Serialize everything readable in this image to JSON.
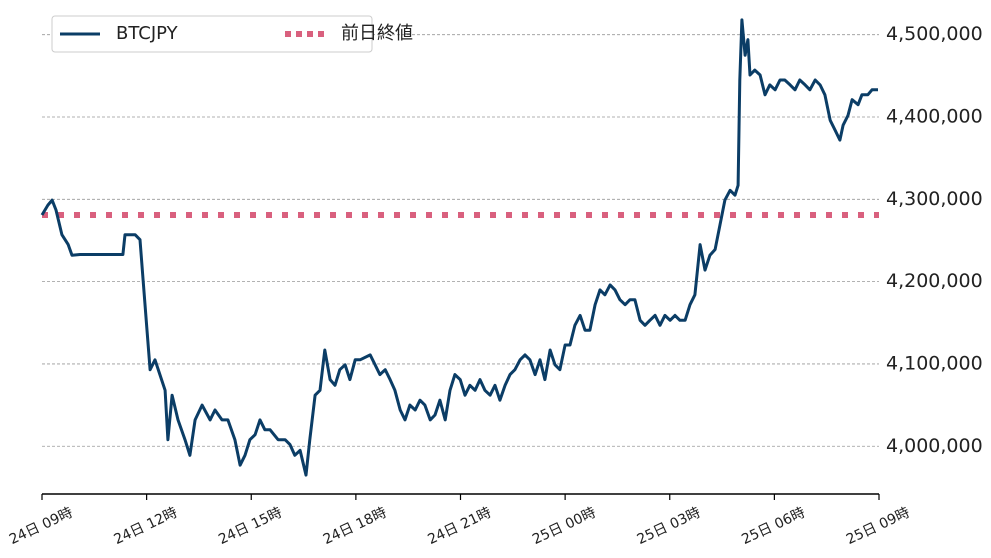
{
  "chart_data": {
    "type": "line",
    "xlim": [
      0,
      24
    ],
    "xticks": [
      {
        "value": 0,
        "label": "24日 09時"
      },
      {
        "value": 3,
        "label": "24日 12時"
      },
      {
        "value": 6,
        "label": "24日 15時"
      },
      {
        "value": 9,
        "label": "24日 18時"
      },
      {
        "value": 12,
        "label": "24日 21時"
      },
      {
        "value": 15,
        "label": "25日 00時"
      },
      {
        "value": 18,
        "label": "25日 03時"
      },
      {
        "value": 21,
        "label": "25日 06時"
      },
      {
        "value": 24,
        "label": "25日 09時"
      }
    ],
    "ylim": [
      3942000,
      4530000
    ],
    "yticks": [
      {
        "value": 4000000,
        "label": "4,000,000"
      },
      {
        "value": 4100000,
        "label": "4,100,000"
      },
      {
        "value": 4200000,
        "label": "4,200,000"
      },
      {
        "value": 4300000,
        "label": "4,300,000"
      },
      {
        "value": 4400000,
        "label": "4,400,000"
      },
      {
        "value": 4500000,
        "label": "4,500,000"
      }
    ],
    "grid": true,
    "legend": "upper left",
    "series": [
      {
        "name": "BTCJPY",
        "color": "#0b3d66",
        "style": "solid",
        "x": [
          0,
          0.17,
          0.29,
          0.4,
          0.57,
          0.75,
          0.86,
          1.09,
          2.32,
          2.38,
          2.67,
          2.81,
          2.9,
          3.01,
          3.1,
          3.24,
          3.38,
          3.53,
          3.61,
          3.73,
          3.9,
          4.1,
          4.24,
          4.39,
          4.59,
          4.82,
          4.96,
          5.16,
          5.33,
          5.53,
          5.68,
          5.82,
          5.96,
          6.11,
          6.25,
          6.39,
          6.54,
          6.77,
          6.97,
          7.11,
          7.25,
          7.4,
          7.57,
          7.68,
          7.83,
          7.97,
          8.11,
          8.26,
          8.4,
          8.54,
          8.69,
          8.83,
          8.98,
          9.12,
          9.41,
          9.55,
          9.69,
          9.84,
          9.98,
          10.12,
          10.27,
          10.41,
          10.55,
          10.7,
          10.84,
          10.98,
          11.13,
          11.27,
          11.41,
          11.56,
          11.7,
          11.84,
          11.99,
          12.13,
          12.27,
          12.42,
          12.56,
          12.7,
          12.85,
          12.99,
          13.13,
          13.28,
          13.42,
          13.56,
          13.71,
          13.85,
          13.99,
          14.14,
          14.28,
          14.42,
          14.57,
          14.71,
          14.85,
          15.0,
          15.14,
          15.28,
          15.43,
          15.57,
          15.71,
          15.86,
          16.0,
          16.14,
          16.29,
          16.43,
          16.57,
          16.72,
          16.86,
          17.0,
          17.15,
          17.29,
          17.43,
          17.58,
          17.72,
          17.86,
          18.01,
          18.15,
          18.29,
          18.44,
          18.58,
          18.72,
          18.87,
          19.01,
          19.15,
          19.3,
          19.44,
          19.58,
          19.73,
          19.87,
          19.96,
          20.01,
          20.07,
          20.16,
          20.24,
          20.3,
          20.44,
          20.59,
          20.73,
          20.87,
          21.02,
          21.16,
          21.3,
          21.45,
          21.59,
          21.73,
          21.88,
          22.02,
          22.17,
          22.31,
          22.45,
          22.6,
          22.74,
          22.88,
          22.97,
          23.11,
          23.23,
          23.4,
          23.51,
          23.68,
          23.8,
          23.97
        ],
        "values": [
          4281000,
          4293000,
          4299000,
          4287000,
          4257000,
          4245000,
          4232000,
          4233000,
          4233000,
          4257000,
          4257000,
          4251000,
          4202000,
          4141000,
          4093000,
          4105000,
          4087000,
          4068000,
          4008000,
          4062000,
          4032000,
          4008000,
          3989000,
          4032000,
          4050000,
          4032000,
          4044000,
          4032000,
          4032000,
          4008000,
          3977000,
          3989000,
          4008000,
          4014000,
          4032000,
          4020000,
          4020000,
          4008000,
          4008000,
          4002000,
          3989000,
          3995000,
          3965000,
          4008000,
          4062000,
          4068000,
          4117000,
          4081000,
          4074000,
          4093000,
          4099000,
          4081000,
          4105000,
          4105000,
          4111000,
          4099000,
          4087000,
          4093000,
          4081000,
          4068000,
          4044000,
          4032000,
          4050000,
          4044000,
          4056000,
          4050000,
          4032000,
          4038000,
          4056000,
          4032000,
          4068000,
          4087000,
          4081000,
          4062000,
          4074000,
          4068000,
          4081000,
          4068000,
          4062000,
          4074000,
          4056000,
          4074000,
          4087000,
          4093000,
          4105000,
          4111000,
          4105000,
          4087000,
          4105000,
          4081000,
          4117000,
          4099000,
          4093000,
          4123000,
          4123000,
          4147000,
          4159000,
          4141000,
          4141000,
          4172000,
          4190000,
          4184000,
          4196000,
          4190000,
          4178000,
          4172000,
          4178000,
          4178000,
          4153000,
          4147000,
          4153000,
          4159000,
          4147000,
          4159000,
          4153000,
          4159000,
          4153000,
          4153000,
          4172000,
          4184000,
          4245000,
          4214000,
          4232000,
          4239000,
          4269000,
          4299000,
          4311000,
          4305000,
          4317000,
          4445000,
          4518000,
          4475000,
          4494000,
          4451000,
          4457000,
          4451000,
          4427000,
          4439000,
          4433000,
          4445000,
          4445000,
          4439000,
          4433000,
          4445000,
          4439000,
          4433000,
          4445000,
          4439000,
          4427000,
          4396000,
          4384000,
          4372000,
          4390000,
          4402000,
          4421000,
          4415000,
          4427000,
          4427000,
          4433000,
          4433000
        ]
      },
      {
        "name": "前日終値",
        "color": "#d9607e",
        "style": "dotted",
        "x": [
          0,
          24
        ],
        "values": [
          4281000,
          4281000
        ]
      }
    ]
  }
}
